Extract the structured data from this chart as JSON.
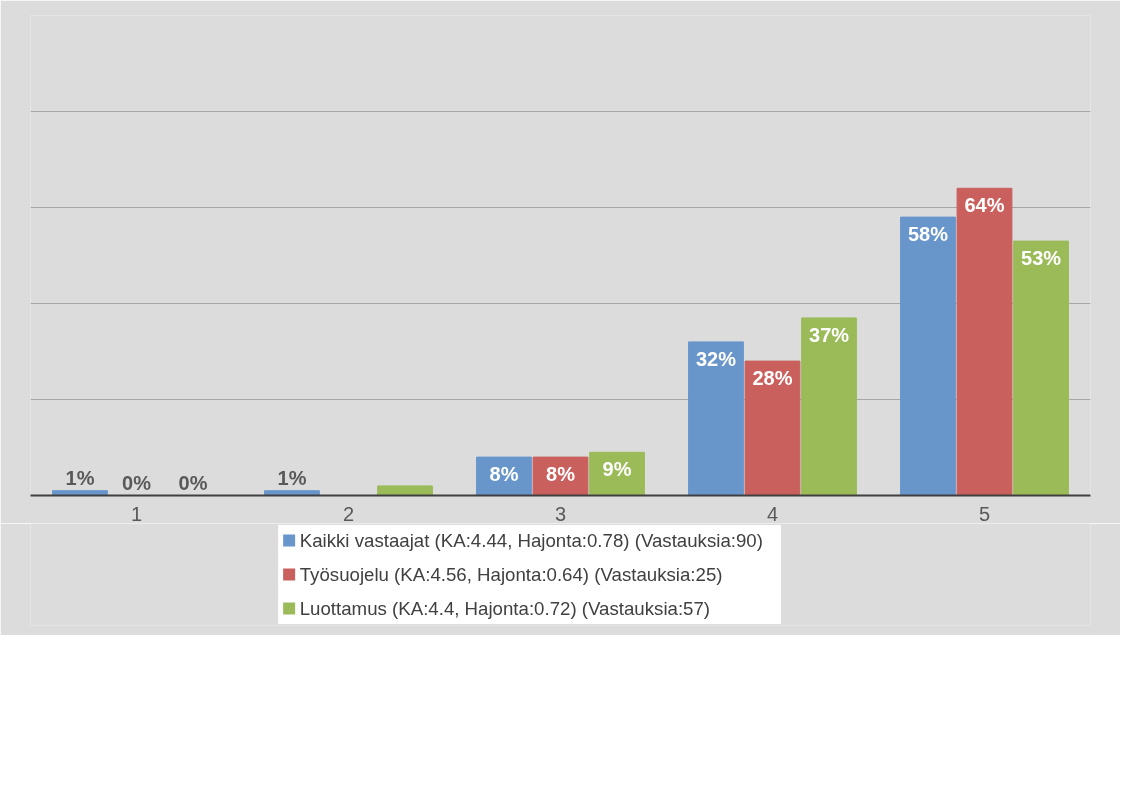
{
  "chart_data": {
    "type": "bar",
    "categories": [
      "1",
      "2",
      "3",
      "4",
      "5"
    ],
    "series": [
      {
        "name": "Kaikki vastaajat (KA:4.44, Hajonta:0.78) (Vastauksia:90)",
        "color": "#6896cb",
        "values": [
          1,
          1,
          8,
          32,
          58
        ],
        "value_labels": [
          "1%",
          "1%",
          "8%",
          "32%",
          "58%"
        ]
      },
      {
        "name": "Työsuojelu (KA:4.56, Hajonta:0.64) (Vastauksia:25)",
        "color": "#c9605e",
        "values": [
          0,
          0,
          8,
          28,
          64
        ],
        "value_labels": [
          "0%",
          null,
          "8%",
          "28%",
          "64%"
        ]
      },
      {
        "name": "Luottamus (KA:4.4, Hajonta:0.72) (Vastauksia:57)",
        "color": "#9bbb59",
        "values": [
          0,
          2,
          9,
          37,
          53
        ],
        "value_labels": [
          "0%",
          null,
          "9%",
          "37%",
          "53%"
        ]
      }
    ],
    "ylim": [
      0,
      100
    ],
    "yticks": [
      0,
      20,
      40,
      60,
      80,
      100
    ],
    "tick_labels": "x",
    "grid": "y",
    "legend": "bottom"
  }
}
